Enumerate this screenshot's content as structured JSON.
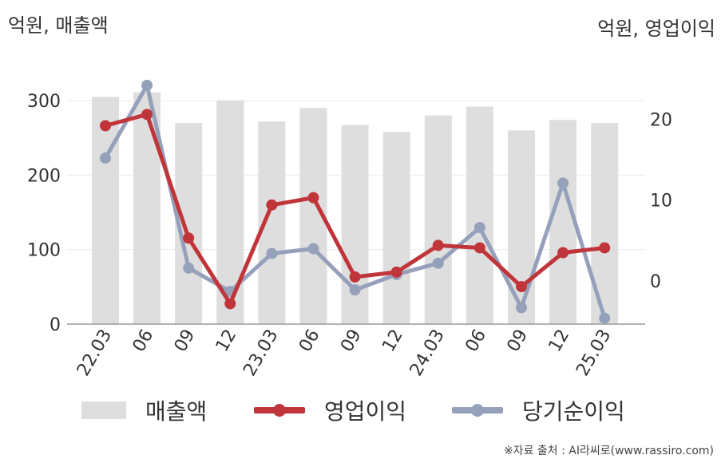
{
  "units": {
    "left": "억원, 매출액",
    "right": "억원, 영업이익"
  },
  "source": "※자료 출처 : AI라씨로(www.rassiro.com)",
  "colors": {
    "revenue": "#dedede",
    "operating": "#c0353a",
    "net": "#95a0ba",
    "grid": "#ebebeb",
    "axis": "#9a9a9a"
  },
  "chart_data": {
    "type": "bar",
    "categories": [
      "22.03",
      "06",
      "09",
      "12",
      "23.03",
      "06",
      "09",
      "12",
      "24.03",
      "06",
      "09",
      "12",
      "25.03"
    ],
    "left_axis": {
      "ticks": [
        0,
        100,
        200,
        300
      ],
      "range": [
        0,
        300
      ]
    },
    "right_axis": {
      "ticks": [
        0,
        10,
        20
      ],
      "range": [
        -5,
        25
      ]
    },
    "series": [
      {
        "name": "매출액",
        "type": "bar",
        "axis": "left",
        "values": [
          305,
          311,
          270,
          300,
          272,
          290,
          267,
          258,
          280,
          292,
          260,
          274,
          270
        ]
      },
      {
        "name": "영업이익",
        "type": "line",
        "axis": "right",
        "values": [
          19.2,
          20.6,
          5.3,
          -2.8,
          9.4,
          10.3,
          0.5,
          1.1,
          4.4,
          4.1,
          -0.7,
          3.5,
          4.1
        ]
      },
      {
        "name": "당기순이익",
        "type": "line",
        "axis": "right",
        "values": [
          15.2,
          24.2,
          1.6,
          -1.3,
          3.4,
          4.0,
          -1.1,
          0.8,
          2.2,
          6.6,
          -3.3,
          12.1,
          -4.6
        ]
      }
    ]
  }
}
